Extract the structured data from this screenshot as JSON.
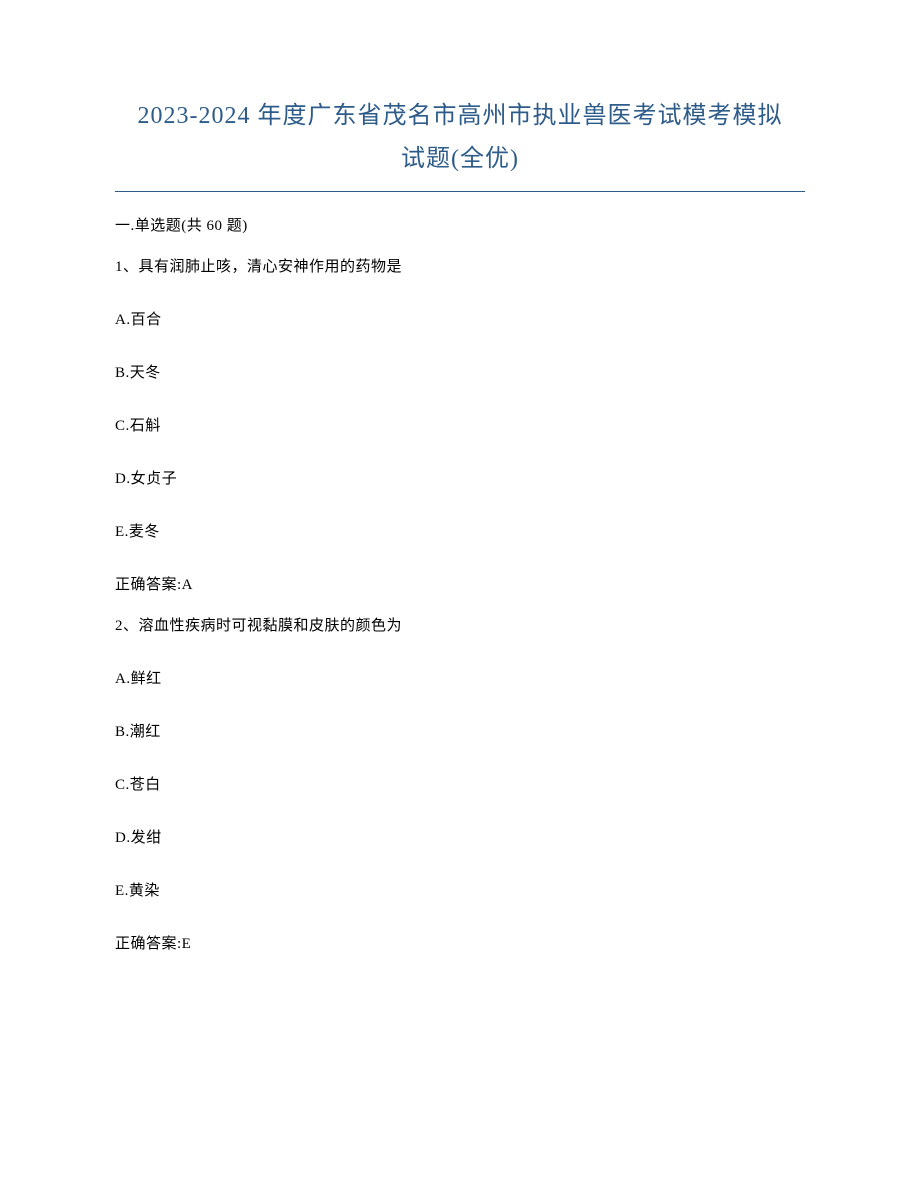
{
  "title_line1": "2023-2024 年度广东省茂名市高州市执业兽医考试模考模拟",
  "title_line2": "试题(全优)",
  "section_header": "一.单选题(共 60 题)",
  "questions": [
    {
      "number": "1、",
      "text": "具有润肺止咳，清心安神作用的药物是",
      "options": [
        {
          "label": "A.百合"
        },
        {
          "label": "B.天冬"
        },
        {
          "label": "C.石斛"
        },
        {
          "label": "D.女贞子"
        },
        {
          "label": "E.麦冬"
        }
      ],
      "answer": "正确答案:A"
    },
    {
      "number": "2、",
      "text": "溶血性疾病时可视黏膜和皮肤的颜色为",
      "options": [
        {
          "label": "A.鲜红"
        },
        {
          "label": "B.潮红"
        },
        {
          "label": "C.苍白"
        },
        {
          "label": "D.发绀"
        },
        {
          "label": "E.黄染"
        }
      ],
      "answer": "正确答案:E"
    }
  ]
}
